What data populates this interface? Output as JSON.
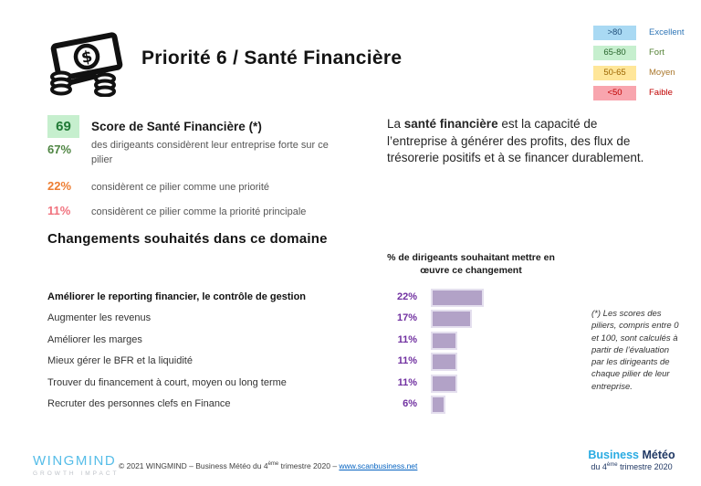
{
  "header": {
    "title": "Priorité 6 / Santé Financière",
    "icon": "money-icon"
  },
  "legend": {
    "items": [
      {
        "range": ">80",
        "label": "Excellent",
        "box_color": "#A9D9F3",
        "text_color": "#2E75B6"
      },
      {
        "range": "65-80",
        "label": "Fort",
        "box_color": "#C6EFCE",
        "text_color": "#538135"
      },
      {
        "range": "50-65",
        "label": "Moyen",
        "box_color": "#FFE699",
        "text_color": "#A9762B"
      },
      {
        "range": "<50",
        "label": "Faible",
        "box_color": "#F8A5AE",
        "text_color": "#C00000"
      }
    ]
  },
  "score_panel": {
    "score": "69",
    "score_box_color": "#C6EFCE",
    "score_text_color": "#217A36",
    "title": "Score de Santé Financière (*)",
    "rows": [
      {
        "pct": "67%",
        "color": "#4E8542",
        "text": "des dirigeants considèrent leur entreprise forte sur ce pilier"
      },
      {
        "pct": "22%",
        "color": "#ED7D31",
        "text": "considèrent ce pilier comme une priorité"
      },
      {
        "pct": "11%",
        "color": "#F1737F",
        "text": "considèrent ce pilier comme la priorité principale"
      }
    ]
  },
  "description": {
    "prefix": "La ",
    "bold": "santé financière",
    "rest": " est la capacité de l’entreprise à générer des profits, des flux de trésorerie positifs et à se financer durablement."
  },
  "section_heading": "Changements souhaités dans ce domaine",
  "chart_data": {
    "type": "bar",
    "orientation": "horizontal",
    "title": "% de dirigeants souhaitant mettre en œuvre ce changement",
    "categories": [
      "Améliorer le reporting financier, le contrôle de gestion",
      "Augmenter les revenus",
      "Améliorer les marges",
      "Mieux gérer le BFR et la liquidité",
      "Trouver du financement à court, moyen ou long terme",
      "Recruter des personnes clefs en Finance"
    ],
    "values": [
      22,
      17,
      11,
      11,
      11,
      6
    ],
    "value_labels": [
      "22%",
      "17%",
      "11%",
      "11%",
      "11%",
      "6%"
    ],
    "xlim": [
      0,
      25
    ],
    "bar_color": "#B2A2C7",
    "value_label_color": "#7030A0",
    "grid": false,
    "legend_position": "none"
  },
  "footnote": "(*) Les scores des piliers, compris entre 0 et 100, sont calculés à partir de l’évaluation par les dirigeants de chaque pilier de leur entreprise.",
  "footer": {
    "logo_main": "WINGMIND",
    "logo_sub": "GROWTH IMPACT",
    "logo_color": "#56BDE8",
    "copyright_prefix": "© 2021 WINGMIND – Business Météo du 4",
    "copyright_sup": "ème",
    "copyright_mid": " trimestre 2020 – ",
    "copyright_link": "www.scanbusiness.net",
    "brand_word1": "Business",
    "brand_word2": "Météo",
    "brand_sub_prefix": "du 4",
    "brand_sub_sup": "ème",
    "brand_sub_rest": " trimestre 2020"
  }
}
